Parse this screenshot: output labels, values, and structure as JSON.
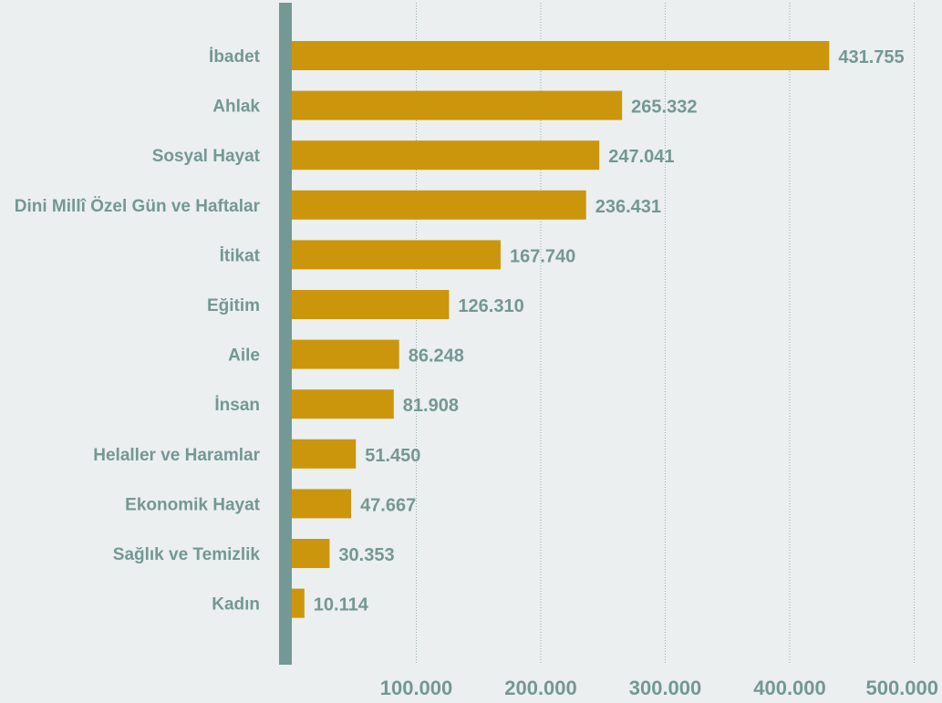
{
  "chart_data": {
    "type": "bar",
    "orientation": "horizontal",
    "title": "",
    "xlabel": "",
    "ylabel": "",
    "categories": [
      "İbadet",
      "Ahlak",
      "Sosyal Hayat",
      "Dini Millî Özel Gün ve Haftalar",
      "İtikat",
      "Eğitim",
      "Aile",
      "İnsan",
      "Helaller ve Haramlar",
      "Ekonomik Hayat",
      "Sağlık ve Temizlik",
      "Kadın"
    ],
    "values": [
      431755,
      265332,
      247041,
      236431,
      167740,
      126310,
      86248,
      81908,
      51450,
      47667,
      30353,
      10114
    ],
    "value_labels": [
      "431.755",
      "265.332",
      "247.041",
      "236.431",
      "167.740",
      "126.310",
      "86.248",
      "81.908",
      "51.450",
      "47.667",
      "30.353",
      "10.114"
    ],
    "xlim": [
      0,
      500000
    ],
    "x_ticks": [
      100000,
      200000,
      300000,
      400000,
      500000
    ],
    "x_tick_labels": [
      "100.000",
      "200.000",
      "300.000",
      "400.000",
      "500.000"
    ],
    "grid": true,
    "legend": "none",
    "colors": {
      "bar": "#cc960c",
      "axis": "#749893",
      "text": "#749893",
      "grid": "#9aaeaa",
      "background": "#ebeff0"
    }
  }
}
